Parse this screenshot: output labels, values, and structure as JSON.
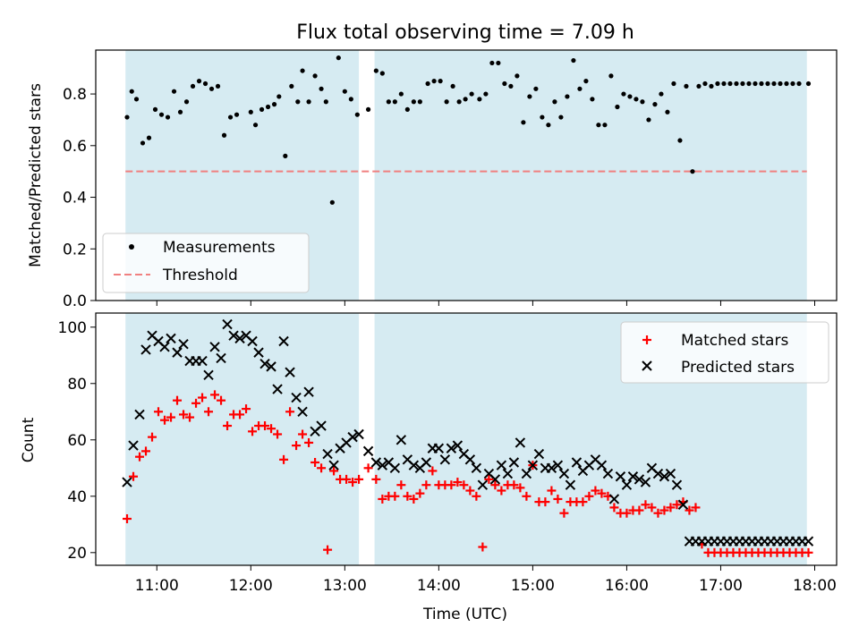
{
  "chart_data": [
    {
      "type": "scatter",
      "title": "Flux total observing time = 7.09 h",
      "xlabel": "",
      "ylabel": "Matched/Predicted stars",
      "xlim": [
        "10:21",
        "18:14"
      ],
      "ylim": [
        0,
        0.97
      ],
      "yticks": [
        0.0,
        0.2,
        0.4,
        0.6,
        0.8
      ],
      "ytick_labels": [
        "0.0",
        "0.2",
        "0.4",
        "0.6",
        "0.8"
      ],
      "shaded_intervals": [
        [
          "10:40",
          "13:09"
        ],
        [
          "13:19",
          "17:55"
        ]
      ],
      "threshold": 0.5,
      "legend": {
        "location": "lower-left",
        "entries": [
          "Measurements",
          "Threshold"
        ]
      },
      "series": [
        {
          "name": "Measurements",
          "marker": "dot",
          "color": "#000000",
          "x": [
            "10:41",
            "10:44",
            "10:47",
            "10:51",
            "10:55",
            "10:59",
            "11:03",
            "11:07",
            "11:11",
            "11:15",
            "11:19",
            "11:23",
            "11:27",
            "11:31",
            "11:35",
            "11:39",
            "11:43",
            "11:47",
            "11:51",
            "12:00",
            "12:03",
            "12:07",
            "12:11",
            "12:15",
            "12:18",
            "12:22",
            "12:26",
            "12:30",
            "12:33",
            "12:37",
            "12:41",
            "12:45",
            "12:48",
            "12:52",
            "12:56",
            "13:00",
            "13:04",
            "13:08",
            "13:15",
            "13:20",
            "13:24",
            "13:28",
            "13:32",
            "13:36",
            "13:40",
            "13:44",
            "13:48",
            "13:53",
            "13:57",
            "14:01",
            "14:05",
            "14:09",
            "14:13",
            "14:17",
            "14:21",
            "14:26",
            "14:30",
            "14:34",
            "14:38",
            "14:42",
            "14:46",
            "14:50",
            "14:54",
            "14:58",
            "15:02",
            "15:06",
            "15:10",
            "15:14",
            "15:18",
            "15:22",
            "15:26",
            "15:30",
            "15:34",
            "15:38",
            "15:42",
            "15:46",
            "15:50",
            "15:54",
            "15:58",
            "16:02",
            "16:06",
            "16:10",
            "16:14",
            "16:18",
            "16:22",
            "16:26",
            "16:30",
            "16:34",
            "16:38",
            "16:42",
            "16:46",
            "16:50",
            "16:54",
            "16:58",
            "17:02",
            "17:06",
            "17:10",
            "17:14",
            "17:18",
            "17:22",
            "17:26",
            "17:30",
            "17:34",
            "17:38",
            "17:42",
            "17:46",
            "17:50",
            "17:56"
          ],
          "y": [
            0.71,
            0.81,
            0.78,
            0.61,
            0.63,
            0.74,
            0.72,
            0.71,
            0.81,
            0.73,
            0.77,
            0.83,
            0.85,
            0.84,
            0.82,
            0.83,
            0.64,
            0.71,
            0.72,
            0.73,
            0.68,
            0.74,
            0.75,
            0.76,
            0.79,
            0.56,
            0.83,
            0.77,
            0.89,
            0.77,
            0.87,
            0.82,
            0.77,
            0.38,
            0.94,
            0.81,
            0.78,
            0.72,
            0.74,
            0.89,
            0.88,
            0.77,
            0.77,
            0.8,
            0.74,
            0.77,
            0.77,
            0.84,
            0.85,
            0.85,
            0.77,
            0.83,
            0.77,
            0.78,
            0.8,
            0.78,
            0.8,
            0.92,
            0.92,
            0.84,
            0.83,
            0.87,
            0.69,
            0.79,
            0.82,
            0.71,
            0.68,
            0.77,
            0.71,
            0.79,
            0.93,
            0.82,
            0.85,
            0.78,
            0.68,
            0.68,
            0.87,
            0.75,
            0.8,
            0.79,
            0.78,
            0.77,
            0.7,
            0.76,
            0.8,
            0.73,
            0.84,
            0.62,
            0.83,
            0.5,
            0.83,
            0.84,
            0.83,
            0.84,
            0.84,
            0.84,
            0.84,
            0.84,
            0.84,
            0.84,
            0.84,
            0.84,
            0.84,
            0.84,
            0.84,
            0.84,
            0.84,
            0.84
          ]
        }
      ]
    },
    {
      "type": "scatter",
      "title": "",
      "xlabel": "Time (UTC)",
      "ylabel": "Count",
      "xlim": [
        "10:21",
        "18:14"
      ],
      "ylim": [
        15.5,
        105
      ],
      "xticks": [
        "11:00",
        "12:00",
        "13:00",
        "14:00",
        "15:00",
        "16:00",
        "17:00",
        "18:00"
      ],
      "yticks": [
        20,
        40,
        60,
        80,
        100
      ],
      "ytick_labels": [
        "20",
        "40",
        "60",
        "80",
        "100"
      ],
      "shaded_intervals": [
        [
          "10:40",
          "13:09"
        ],
        [
          "13:19",
          "17:55"
        ]
      ],
      "legend": {
        "location": "top-right",
        "entries": [
          "Matched stars",
          "Predicted stars"
        ]
      },
      "series": [
        {
          "name": "Matched stars",
          "marker": "plus",
          "color": "#ff0000",
          "x": [
            "10:41",
            "10:45",
            "10:49",
            "10:53",
            "10:57",
            "11:01",
            "11:05",
            "11:09",
            "11:13",
            "11:17",
            "11:21",
            "11:25",
            "11:29",
            "11:33",
            "11:37",
            "11:41",
            "11:45",
            "11:49",
            "11:53",
            "11:57",
            "12:01",
            "12:05",
            "12:09",
            "12:13",
            "12:17",
            "12:21",
            "12:25",
            "12:29",
            "12:33",
            "12:37",
            "12:41",
            "12:45",
            "12:49",
            "12:53",
            "12:57",
            "13:01",
            "13:05",
            "13:09",
            "13:15",
            "13:20",
            "13:24",
            "13:28",
            "13:32",
            "13:36",
            "13:40",
            "13:44",
            "13:48",
            "13:52",
            "13:56",
            "14:00",
            "14:04",
            "14:08",
            "14:12",
            "14:16",
            "14:20",
            "14:24",
            "14:28",
            "14:32",
            "14:36",
            "14:40",
            "14:44",
            "14:48",
            "14:52",
            "14:56",
            "15:00",
            "15:04",
            "15:08",
            "15:12",
            "15:16",
            "15:20",
            "15:24",
            "15:28",
            "15:32",
            "15:36",
            "15:40",
            "15:44",
            "15:48",
            "15:52",
            "15:56",
            "16:00",
            "16:04",
            "16:08",
            "16:12",
            "16:16",
            "16:20",
            "16:24",
            "16:28",
            "16:32",
            "16:36",
            "16:40",
            "16:44",
            "16:48",
            "16:52",
            "16:56",
            "17:00",
            "17:04",
            "17:08",
            "17:12",
            "17:16",
            "17:20",
            "17:24",
            "17:28",
            "17:32",
            "17:36",
            "17:40",
            "17:44",
            "17:48",
            "17:52",
            "17:56"
          ],
          "y": [
            32,
            47,
            54,
            56,
            61,
            70,
            67,
            68,
            74,
            69,
            68,
            73,
            75,
            70,
            76,
            74,
            65,
            69,
            69,
            71,
            63,
            65,
            65,
            64,
            62,
            53,
            70,
            58,
            62,
            59,
            52,
            50,
            21,
            49,
            46,
            46,
            45,
            46,
            50,
            46,
            39,
            40,
            40,
            44,
            40,
            39,
            41,
            44,
            49,
            44,
            44,
            44,
            45,
            44,
            42,
            40,
            22,
            46,
            44,
            42,
            44,
            44,
            43,
            40,
            51,
            38,
            38,
            42,
            39,
            34,
            38,
            38,
            38,
            40,
            42,
            41,
            40,
            36,
            34,
            34,
            35,
            35,
            37,
            36,
            34,
            35,
            36,
            37,
            38,
            35,
            36,
            23,
            20,
            20,
            20,
            20,
            20,
            20,
            20,
            20,
            20,
            20,
            20,
            20,
            20,
            20,
            20,
            20,
            20
          ]
        },
        {
          "name": "Predicted stars",
          "marker": "cross",
          "color": "#000000",
          "x": [
            "10:41",
            "10:45",
            "10:49",
            "10:53",
            "10:57",
            "11:01",
            "11:05",
            "11:09",
            "11:13",
            "11:17",
            "11:21",
            "11:25",
            "11:29",
            "11:33",
            "11:37",
            "11:41",
            "11:45",
            "11:49",
            "11:53",
            "11:57",
            "12:01",
            "12:05",
            "12:09",
            "12:13",
            "12:17",
            "12:21",
            "12:25",
            "12:29",
            "12:33",
            "12:37",
            "12:41",
            "12:45",
            "12:49",
            "12:53",
            "12:57",
            "13:01",
            "13:05",
            "13:09",
            "13:15",
            "13:20",
            "13:24",
            "13:28",
            "13:32",
            "13:36",
            "13:40",
            "13:44",
            "13:48",
            "13:52",
            "13:56",
            "14:00",
            "14:04",
            "14:08",
            "14:12",
            "14:16",
            "14:20",
            "14:24",
            "14:28",
            "14:32",
            "14:36",
            "14:40",
            "14:44",
            "14:48",
            "14:52",
            "14:56",
            "15:00",
            "15:04",
            "15:08",
            "15:12",
            "15:16",
            "15:20",
            "15:24",
            "15:28",
            "15:32",
            "15:36",
            "15:40",
            "15:44",
            "15:48",
            "15:52",
            "15:56",
            "16:00",
            "16:04",
            "16:08",
            "16:12",
            "16:16",
            "16:20",
            "16:24",
            "16:28",
            "16:32",
            "16:36",
            "16:40",
            "16:44",
            "16:48",
            "16:52",
            "16:56",
            "17:00",
            "17:04",
            "17:08",
            "17:12",
            "17:16",
            "17:20",
            "17:24",
            "17:28",
            "17:32",
            "17:36",
            "17:40",
            "17:44",
            "17:48",
            "17:52",
            "17:56"
          ],
          "y": [
            45,
            58,
            69,
            92,
            97,
            95,
            93,
            96,
            91,
            94,
            88,
            88,
            88,
            83,
            93,
            89,
            101,
            97,
            96,
            97,
            95,
            91,
            87,
            86,
            78,
            95,
            84,
            75,
            70,
            77,
            63,
            65,
            55,
            51,
            57,
            59,
            61,
            62,
            56,
            52,
            51,
            52,
            50,
            60,
            53,
            51,
            50,
            52,
            57,
            57,
            53,
            57,
            58,
            55,
            53,
            50,
            44,
            48,
            46,
            51,
            48,
            52,
            59,
            48,
            51,
            55,
            50,
            50,
            51,
            48,
            44,
            52,
            49,
            51,
            53,
            51,
            48,
            39,
            47,
            44,
            47,
            46,
            45,
            50,
            48,
            47,
            48,
            44,
            37,
            24,
            24,
            24,
            24,
            24,
            24,
            24,
            24,
            24,
            24,
            24,
            24,
            24,
            24,
            24,
            24,
            24,
            24,
            24,
            24
          ]
        }
      ]
    }
  ]
}
